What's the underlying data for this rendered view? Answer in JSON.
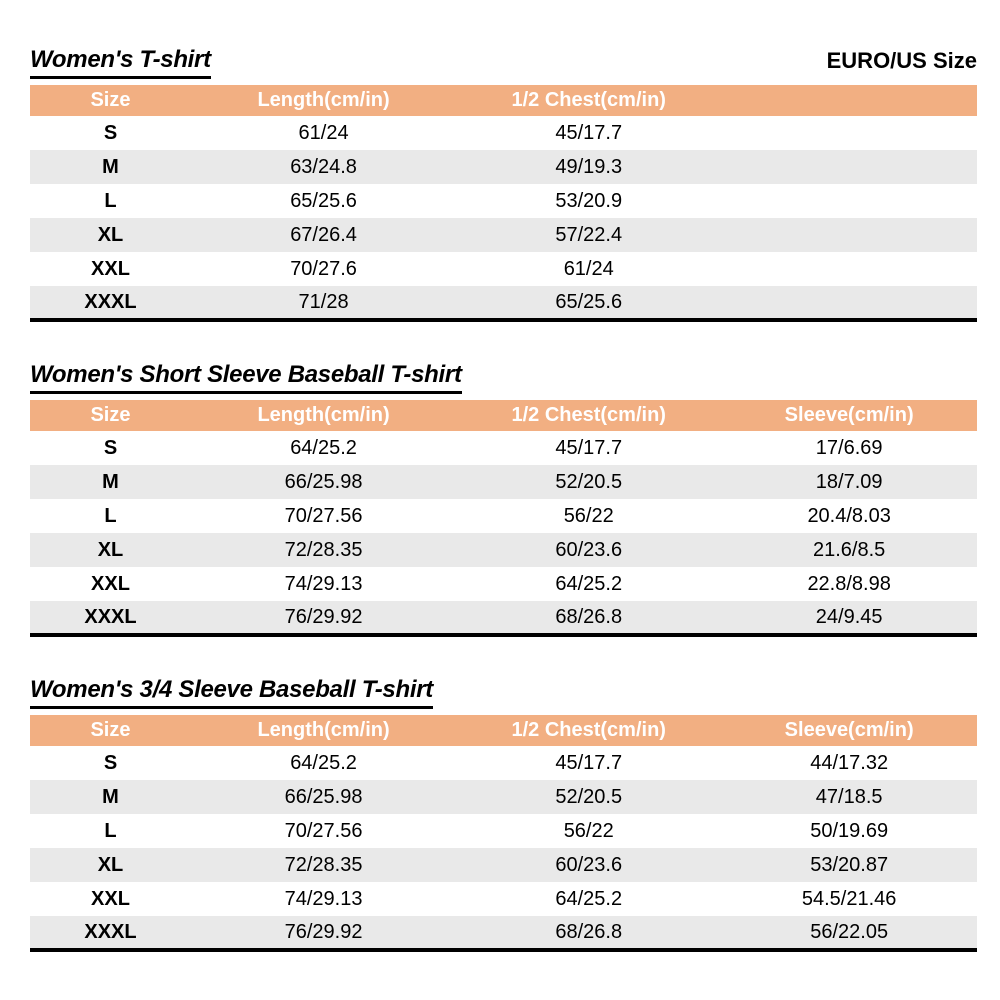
{
  "page": {
    "size_standard_label": "EURO/US Size"
  },
  "colors": {
    "header_bg": "#F2AF82",
    "header_text": "#FFFFFF",
    "stripe_bg": "#E9E9E9",
    "table_border": "#000000"
  },
  "tables": [
    {
      "title": "Women's T-shirt",
      "columns": [
        "Size",
        "Length(cm/in)",
        "1/2 Chest(cm/in)",
        ""
      ],
      "rows": [
        [
          "S",
          "61/24",
          "45/17.7",
          ""
        ],
        [
          "M",
          "63/24.8",
          "49/19.3",
          ""
        ],
        [
          "L",
          "65/25.6",
          "53/20.9",
          ""
        ],
        [
          "XL",
          "67/26.4",
          "57/22.4",
          ""
        ],
        [
          "XXL",
          "70/27.6",
          "61/24",
          ""
        ],
        [
          "XXXL",
          "71/28",
          "65/25.6",
          ""
        ]
      ]
    },
    {
      "title": "Women's Short Sleeve Baseball T-shirt",
      "columns": [
        "Size",
        "Length(cm/in)",
        "1/2 Chest(cm/in)",
        "Sleeve(cm/in)"
      ],
      "rows": [
        [
          "S",
          "64/25.2",
          "45/17.7",
          "17/6.69"
        ],
        [
          "M",
          "66/25.98",
          "52/20.5",
          "18/7.09"
        ],
        [
          "L",
          "70/27.56",
          "56/22",
          "20.4/8.03"
        ],
        [
          "XL",
          "72/28.35",
          "60/23.6",
          "21.6/8.5"
        ],
        [
          "XXL",
          "74/29.13",
          "64/25.2",
          "22.8/8.98"
        ],
        [
          "XXXL",
          "76/29.92",
          "68/26.8",
          "24/9.45"
        ]
      ]
    },
    {
      "title": "Women's 3/4 Sleeve Baseball T-shirt",
      "columns": [
        "Size",
        "Length(cm/in)",
        "1/2 Chest(cm/in)",
        "Sleeve(cm/in)"
      ],
      "rows": [
        [
          "S",
          "64/25.2",
          "45/17.7",
          "44/17.32"
        ],
        [
          "M",
          "66/25.98",
          "52/20.5",
          "47/18.5"
        ],
        [
          "L",
          "70/27.56",
          "56/22",
          "50/19.69"
        ],
        [
          "XL",
          "72/28.35",
          "60/23.6",
          "53/20.87"
        ],
        [
          "XXL",
          "74/29.13",
          "64/25.2",
          "54.5/21.46"
        ],
        [
          "XXXL",
          "76/29.92",
          "68/26.8",
          "56/22.05"
        ]
      ]
    }
  ]
}
